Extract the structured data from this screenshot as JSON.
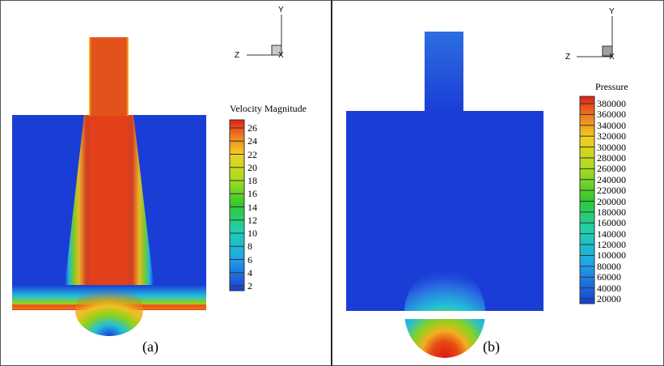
{
  "panel_a": {
    "caption": "(a)",
    "legend_title": "Velocity Magnitude",
    "legend_ticks": [
      "26",
      "24",
      "22",
      "20",
      "18",
      "16",
      "14",
      "12",
      "10",
      "8",
      "6",
      "4",
      "2"
    ],
    "axes": {
      "y": "Y",
      "z": "Z",
      "x": "X"
    },
    "colors": {
      "low": "#1a3dd6",
      "high": "#e02a14"
    }
  },
  "panel_b": {
    "caption": "(b)",
    "legend_title": "Pressure",
    "legend_ticks": [
      "380000",
      "360000",
      "340000",
      "320000",
      "300000",
      "280000",
      "260000",
      "240000",
      "220000",
      "200000",
      "180000",
      "160000",
      "140000",
      "120000",
      "100000",
      "80000",
      "60000",
      "40000",
      "20000"
    ],
    "axes": {
      "y": "Y",
      "z": "Z",
      "x": "X"
    },
    "colors": {
      "low": "#1a3dd6",
      "high": "#e02a14"
    }
  }
}
